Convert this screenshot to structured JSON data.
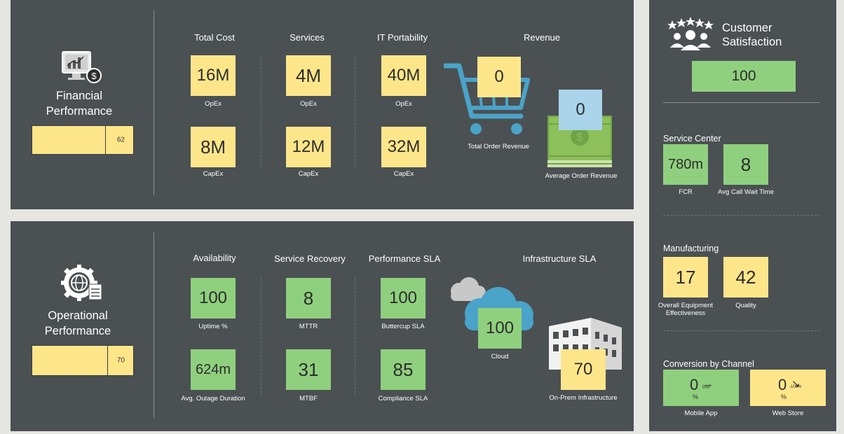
{
  "financial": {
    "title_line1": "Financial",
    "title_line2": "Performance",
    "gauge_value": "62",
    "gauge_fraction": 0.72,
    "headers": {
      "total_cost": "Total Cost",
      "services": "Services",
      "it_portability": "IT Portability",
      "revenue": "Revenue"
    },
    "tiles": {
      "total_cost_opex": {
        "value": "16M",
        "caption": "OpEx"
      },
      "total_cost_capex": {
        "value": "8M",
        "caption": "CapEx"
      },
      "services_opex": {
        "value": "4M",
        "caption": "OpEx"
      },
      "services_capex": {
        "value": "12M",
        "caption": "CapEx"
      },
      "it_opex": {
        "value": "40M",
        "caption": "OpEx"
      },
      "it_capex": {
        "value": "32M",
        "caption": "CapEx"
      },
      "total_order_revenue": {
        "value": "0",
        "caption": "Total Order Revenue"
      },
      "average_order_revenue": {
        "value": "0",
        "caption": "Average Order Revenue"
      }
    }
  },
  "operational": {
    "title_line1": "Operational",
    "title_line2": "Performance",
    "gauge_value": "70",
    "gauge_fraction": 0.74,
    "headers": {
      "availability": "Availability",
      "service_recovery": "Service Recovery",
      "performance_sla": "Performance SLA",
      "infrastructure_sla": "Infrastructure SLA"
    },
    "tiles": {
      "uptime": {
        "value": "100",
        "caption": "Uptime %"
      },
      "outage": {
        "value": "624m",
        "caption": "Avg. Outage Duration"
      },
      "mttr": {
        "value": "8",
        "caption": "MTTR"
      },
      "mtbf": {
        "value": "31",
        "caption": "MTBF"
      },
      "buttercup": {
        "value": "100",
        "caption": "Buttercup SLA"
      },
      "compliance": {
        "value": "85",
        "caption": "Compliance SLA"
      },
      "cloud": {
        "value": "100",
        "caption": "Cloud"
      },
      "onprem": {
        "value": "70",
        "caption": "On-Prem Infrastructure"
      }
    }
  },
  "sidebar": {
    "customer_satisfaction": {
      "title_line1": "Customer",
      "title_line2": "Satisfaction",
      "value": "100"
    },
    "service_center": {
      "title": "Service Center",
      "fcr": {
        "value": "780m",
        "caption": "FCR"
      },
      "wait": {
        "value": "8",
        "caption": "Avg Call Wait Time"
      }
    },
    "manufacturing": {
      "title": "Manufacturing",
      "oee": {
        "value": "17",
        "caption_line1": "Overall Equipment",
        "caption_line2": "Effectiveness"
      },
      "quality": {
        "value": "42",
        "caption": "Quality"
      }
    },
    "conversion": {
      "title": "Conversion by Channel",
      "mobile": {
        "value": "0",
        "delta": "0%",
        "unit": "%",
        "arrow": "→",
        "caption": "Mobile App"
      },
      "web": {
        "value": "0",
        "delta": "-100%",
        "unit": "%",
        "arrow": "↘",
        "caption": "Web Store"
      }
    }
  },
  "colors": {
    "panel": "#4b5053",
    "yellow": "#fde68a",
    "green": "#8fd07e",
    "blue": "#a9d4ea",
    "cart": "#4aa3c8",
    "money": "#8dbf5a"
  },
  "icons": [
    "monitor-chart-gear-icon",
    "shopping-cart-icon",
    "money-stack-icon",
    "gear-globe-clipboard-icon",
    "cloud-icon",
    "building-icon",
    "stars-people-icon"
  ]
}
